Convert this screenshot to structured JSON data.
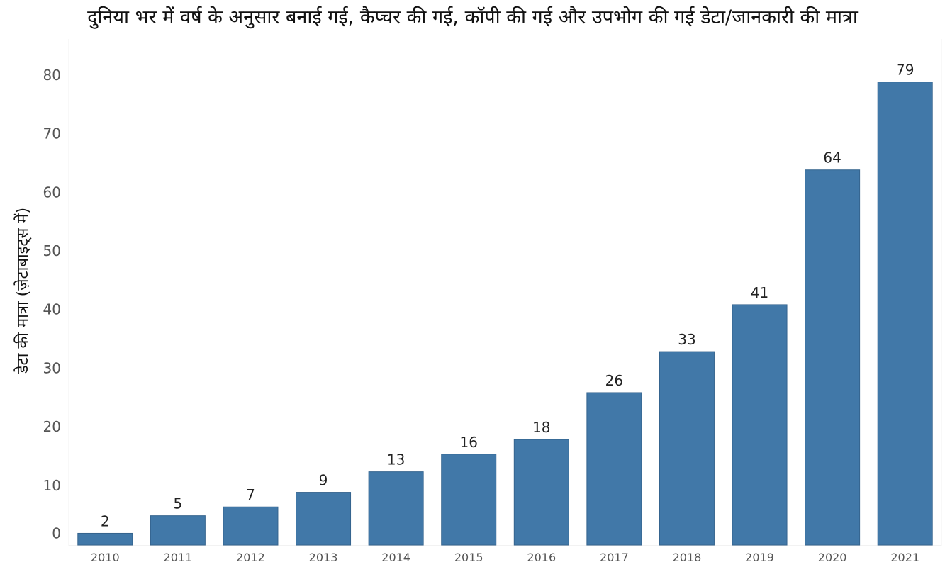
{
  "chart_data": {
    "type": "bar",
    "title": "दुनिया भर में वर्ष के अनुसार बनाई गई, कैप्चर की गई, कॉपी की गई और उपभोग की गई डेटा/जानकारी की मात्रा",
    "xlabel": "",
    "ylabel": "डेटा की मात्रा (ज़ेटाबाइट्स में)",
    "categories": [
      "2010",
      "2011",
      "2012",
      "2013",
      "2014",
      "2015",
      "2016",
      "2017",
      "2018",
      "2019",
      "2020",
      "2021"
    ],
    "values": [
      2,
      5,
      6.5,
      9,
      12.5,
      15.5,
      18,
      26,
      33,
      41,
      64,
      79
    ],
    "data_labels": [
      "2",
      "5",
      "7",
      "9",
      "13",
      "16",
      "18",
      "26",
      "33",
      "41",
      "64",
      "79"
    ],
    "ylim": [
      0,
      80
    ],
    "yticks": [
      0,
      10,
      20,
      30,
      40,
      50,
      60,
      70,
      80
    ],
    "grid": false,
    "legend": "none",
    "bar_color": "#4178a8"
  }
}
